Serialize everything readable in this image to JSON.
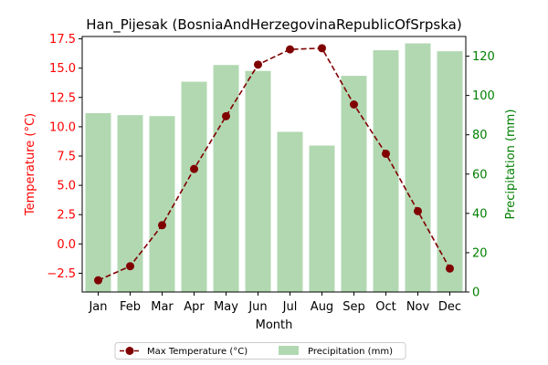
{
  "chart_data": {
    "type": "bar+line",
    "title": "Han_Pijesak (BosniaAndHerzegovinaRepublicOfSrpska)",
    "xlabel": "Month",
    "categories": [
      "Jan",
      "Feb",
      "Mar",
      "Apr",
      "May",
      "Jun",
      "Jul",
      "Aug",
      "Sep",
      "Oct",
      "Nov",
      "Dec"
    ],
    "left_axis": {
      "label": "Temperature (°C)",
      "color": "#ff0000",
      "ylim": [
        -4.1,
        17.7
      ],
      "ticks": [
        -2.5,
        0.0,
        2.5,
        5.0,
        7.5,
        10.0,
        12.5,
        15.0,
        17.5
      ],
      "tick_labels": [
        "−2.5",
        "0.0",
        "2.5",
        "5.0",
        "7.5",
        "10.0",
        "12.5",
        "15.0",
        "17.5"
      ]
    },
    "right_axis": {
      "label": "Precipitation (mm)",
      "color": "#008000",
      "ylim": [
        0,
        130
      ],
      "ticks": [
        0,
        20,
        40,
        60,
        80,
        100,
        120
      ],
      "tick_labels": [
        "0",
        "20",
        "40",
        "60",
        "80",
        "100",
        "120"
      ]
    },
    "series": [
      {
        "name": "Max Temperature (°C)",
        "type": "line",
        "axis": "left",
        "color": "#800000",
        "style": "dashed",
        "marker": "circle",
        "values": [
          -3.1,
          -1.9,
          1.6,
          6.4,
          10.9,
          15.3,
          16.6,
          16.7,
          11.9,
          7.7,
          2.8,
          -2.1
        ]
      },
      {
        "name": "Precipitation (mm)",
        "type": "bar",
        "axis": "right",
        "color": "#b2d8b2",
        "values": [
          91,
          90,
          89.5,
          107,
          115.5,
          112.5,
          81.5,
          74.5,
          110,
          123,
          126.5,
          122.5
        ]
      }
    ],
    "legend": {
      "placement": "bottom-center"
    },
    "grid": false
  }
}
